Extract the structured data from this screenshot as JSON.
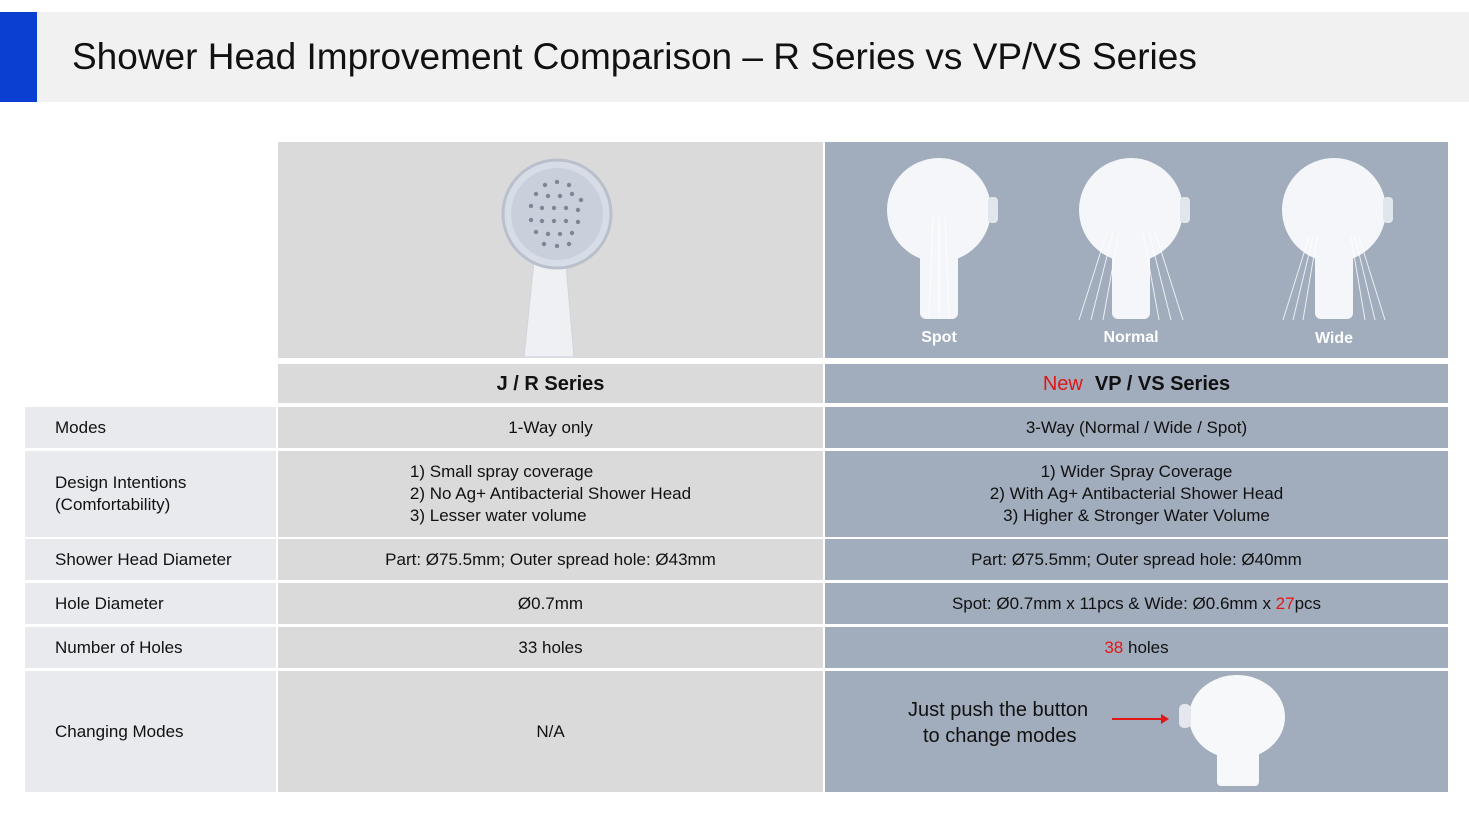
{
  "title": "Shower Head Improvement Comparison – R Series vs VP/VS Series",
  "columns": {
    "left_header": "J / R Series",
    "right_header_prefix": "New",
    "right_header": "VP / VS Series"
  },
  "images": {
    "left_icon": "shower-head-jr-series",
    "right_captions": [
      "Spot",
      "Normal",
      "Wide"
    ]
  },
  "rows": {
    "modes": {
      "label": "Modes",
      "left": "1-Way only",
      "right": "3-Way (Normal / Wide / Spot)"
    },
    "design": {
      "label_line1": "Design Intentions",
      "label_line2": "(Comfortability)",
      "left": [
        "1) Small spray coverage",
        "2) No Ag+ Antibacterial Shower Head",
        "3) Lesser water volume"
      ],
      "right": [
        "1) Wider Spray Coverage",
        "2) With Ag+ Antibacterial Shower Head",
        "3) Higher & Stronger Water Volume"
      ]
    },
    "diameter": {
      "label": "Shower Head Diameter",
      "left": "Part: Ø75.5mm; Outer spread hole: Ø43mm",
      "right": "Part: Ø75.5mm; Outer spread hole: Ø40mm"
    },
    "hole_diameter": {
      "label": "Hole Diameter",
      "left": "Ø0.7mm",
      "right_pre": "Spot: Ø0.7mm x 11pcs & Wide: Ø0.6mm x ",
      "right_highlight": "27",
      "right_post": "pcs"
    },
    "holes": {
      "label": "Number of Holes",
      "left": "33 holes",
      "right_highlight": "38",
      "right_post": " holes"
    },
    "changing": {
      "label": "Changing Modes",
      "left": "N/A",
      "right_line1": "Just push the button",
      "right_line2": "to change modes"
    }
  },
  "colors": {
    "accent": "#0a3fd1",
    "highlight": "#e11616",
    "left_col": "#dadada",
    "right_col": "#a1acbd"
  }
}
